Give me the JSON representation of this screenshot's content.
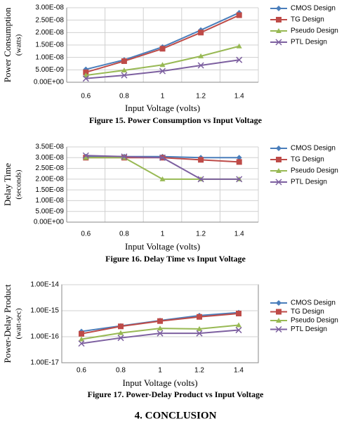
{
  "chart_data": [
    {
      "type": "line",
      "ylabel": [
        "Power Consumption",
        "(watts)"
      ],
      "xlabel": "Input Voltage (volts)",
      "caption": "Figure 15. Power Consumption vs Input Voltage",
      "categories": [
        "0.6",
        "0.8",
        "1",
        "1.2",
        "1.4"
      ],
      "ylim": [
        0,
        3e-08
      ],
      "yticks": [
        {
          "value": 0,
          "label": "0.00E+00"
        },
        {
          "value": 5e-09,
          "label": "5.00E-09"
        },
        {
          "value": 1e-08,
          "label": "1.00E-08"
        },
        {
          "value": 1.5e-08,
          "label": "1.50E-08"
        },
        {
          "value": 2e-08,
          "label": "2.00E-08"
        },
        {
          "value": 2.5e-08,
          "label": "2.50E-08"
        },
        {
          "value": 3e-08,
          "label": "3.00E-08"
        }
      ],
      "grid": true,
      "series": [
        {
          "name": "CMOS Design",
          "color": "#4a7ebb",
          "marker": "diamond",
          "values": [
            5.2e-09,
            9e-09,
            1.42e-08,
            2.1e-08,
            2.8e-08
          ]
        },
        {
          "name": "TG Design",
          "color": "#be4b48",
          "marker": "square",
          "values": [
            4e-09,
            8.5e-09,
            1.35e-08,
            2e-08,
            2.7e-08
          ]
        },
        {
          "name": "Pseudo Design",
          "color": "#98b954",
          "marker": "triangle",
          "values": [
            2.8e-09,
            4.8e-09,
            7e-09,
            1.05e-08,
            1.45e-08
          ]
        },
        {
          "name": "PTL Design",
          "color": "#7d60a0",
          "marker": "x",
          "values": [
            1.5e-09,
            2.8e-09,
            4.5e-09,
            6.8e-09,
            9e-09
          ]
        }
      ]
    },
    {
      "type": "line",
      "ylabel": [
        "Delay Time",
        "(seconds)"
      ],
      "xlabel": "Input Voltage (volts)",
      "caption": "Figure 16. Delay Time vs  Input Voltage",
      "categories": [
        "0.6",
        "0.8",
        "1",
        "1.2",
        "1.4"
      ],
      "ylim": [
        0,
        3.5e-08
      ],
      "yticks": [
        {
          "value": 0,
          "label": "0.00E+00"
        },
        {
          "value": 5e-09,
          "label": "5.00E-09"
        },
        {
          "value": 1e-08,
          "label": "1.00E-08"
        },
        {
          "value": 1.5e-08,
          "label": "1.50E-08"
        },
        {
          "value": 2e-08,
          "label": "2.00E-08"
        },
        {
          "value": 2.5e-08,
          "label": "2.50E-08"
        },
        {
          "value": 3e-08,
          "label": "3.00E-08"
        },
        {
          "value": 3.5e-08,
          "label": "3.50E-08"
        }
      ],
      "grid": true,
      "series": [
        {
          "name": "CMOS Design",
          "color": "#4a7ebb",
          "marker": "diamond",
          "values": [
            3.05e-08,
            3.05e-08,
            3.05e-08,
            3e-08,
            3e-08
          ]
        },
        {
          "name": "TG Design",
          "color": "#be4b48",
          "marker": "square",
          "values": [
            3e-08,
            3e-08,
            3e-08,
            2.9e-08,
            2.8e-08
          ]
        },
        {
          "name": "Pseudo Design",
          "color": "#98b954",
          "marker": "triangle",
          "values": [
            3e-08,
            3e-08,
            2e-08,
            2e-08,
            2e-08
          ]
        },
        {
          "name": "PTL Design",
          "color": "#7d60a0",
          "marker": "x",
          "values": [
            3.1e-08,
            3.05e-08,
            3e-08,
            2e-08,
            2e-08
          ]
        }
      ]
    },
    {
      "type": "line",
      "ylabel": [
        "Power-Delay Product",
        "(watt-sec)"
      ],
      "xlabel": "Input Voltage (volts)",
      "caption": "Figure 17. Power-Delay Product vs  Input Voltage",
      "categories": [
        "0.6",
        "0.8",
        "1",
        "1.2",
        "1.4"
      ],
      "log_scale": true,
      "ylim": [
        1e-17,
        1e-14
      ],
      "yticks": [
        {
          "value": 1e-17,
          "label": "1.00E-17"
        },
        {
          "value": 1e-16,
          "label": "1.00E-16"
        },
        {
          "value": 1e-15,
          "label": "1.00E-15"
        },
        {
          "value": 1e-14,
          "label": "1.00E-14"
        }
      ],
      "grid": true,
      "series": [
        {
          "name": "CMOS Design",
          "color": "#4a7ebb",
          "marker": "diamond",
          "values": [
            1.6e-16,
            2.6e-16,
            4.2e-16,
            6.5e-16,
            8.5e-16
          ]
        },
        {
          "name": "TG Design",
          "color": "#be4b48",
          "marker": "square",
          "values": [
            1.3e-16,
            2.5e-16,
            4e-16,
            5.8e-16,
            7.8e-16
          ]
        },
        {
          "name": "Pseudo Design",
          "color": "#98b954",
          "marker": "triangle",
          "values": [
            8e-17,
            1.4e-16,
            2.1e-16,
            2e-16,
            2.8e-16
          ]
        },
        {
          "name": "PTL Design",
          "color": "#7d60a0",
          "marker": "x",
          "values": [
            5.5e-17,
            9e-17,
            1.35e-16,
            1.35e-16,
            1.8e-16
          ]
        }
      ]
    }
  ],
  "section_heading": "4.   CONCLUSION"
}
